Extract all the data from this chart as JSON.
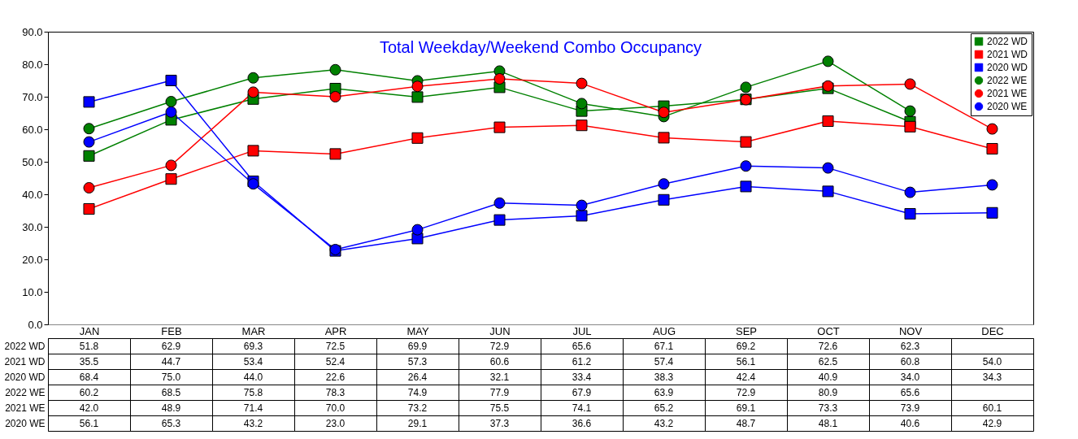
{
  "chart_data": {
    "type": "line",
    "title": "Total Weekday/Weekend Combo Occupancy",
    "categories": [
      "JAN",
      "FEB",
      "MAR",
      "APR",
      "MAY",
      "JUN",
      "JUL",
      "AUG",
      "SEP",
      "OCT",
      "NOV",
      "DEC"
    ],
    "series": [
      {
        "name": "2022 WD",
        "color": "#008000",
        "marker": "square",
        "values": [
          51.8,
          62.9,
          69.3,
          72.5,
          69.9,
          72.9,
          65.6,
          67.1,
          69.2,
          72.6,
          62.3,
          null
        ],
        "value_labels": [
          "51.8",
          "62.9",
          "69.3",
          "72.5",
          "69.9",
          "72.9",
          "65.6",
          "67.1",
          "69.2",
          "72.6",
          "62.3",
          null
        ]
      },
      {
        "name": "2021 WD",
        "color": "#ff0000",
        "marker": "square",
        "values": [
          35.5,
          44.7,
          53.4,
          52.4,
          57.3,
          60.6,
          61.2,
          57.4,
          56.1,
          62.5,
          60.8,
          54.0
        ],
        "value_labels": [
          "35.5",
          "44.7",
          "53.4",
          "52.4",
          "57.3",
          "60.6",
          "61.2",
          "57.4",
          "56.1",
          "62.5",
          "60.8",
          "54.0"
        ]
      },
      {
        "name": "2020 WD",
        "color": "#0000ff",
        "marker": "square",
        "values": [
          68.4,
          75.0,
          44.0,
          22.6,
          26.4,
          32.1,
          33.4,
          38.3,
          42.4,
          40.9,
          34.0,
          34.3
        ],
        "value_labels": [
          "68.4",
          "75.0",
          "44.0",
          "22.6",
          "26.4",
          "32.1",
          "33.4",
          "38.3",
          "42.4",
          "40.9",
          "34.0",
          "34.3"
        ]
      },
      {
        "name": "2022 WE",
        "color": "#008000",
        "marker": "circle",
        "values": [
          60.2,
          68.5,
          75.8,
          78.3,
          74.9,
          77.9,
          67.9,
          63.9,
          72.9,
          80.9,
          65.6,
          null
        ],
        "value_labels": [
          "60.2",
          "68.5",
          "75.8",
          "78.3",
          "74.9",
          "77.9",
          "67.9",
          "63.9",
          "72.9",
          "80.9",
          "65.6",
          null
        ]
      },
      {
        "name": "2021 WE",
        "color": "#ff0000",
        "marker": "circle",
        "values": [
          42.0,
          48.9,
          71.4,
          70.0,
          73.2,
          75.5,
          74.1,
          65.2,
          69.1,
          73.3,
          73.9,
          60.1
        ],
        "value_labels": [
          "42.0",
          "48.9",
          "71.4",
          "70.0",
          "73.2",
          "75.5",
          "74.1",
          "65.2",
          "69.1",
          "73.3",
          "73.9",
          "60.1"
        ]
      },
      {
        "name": "2020 WE",
        "color": "#0000ff",
        "marker": "circle",
        "values": [
          56.1,
          65.3,
          43.2,
          23.0,
          29.1,
          37.3,
          36.6,
          43.2,
          48.7,
          48.1,
          40.6,
          42.9
        ],
        "value_labels": [
          "56.1",
          "65.3",
          "43.2",
          "23.0",
          "29.1",
          "37.3",
          "36.6",
          "43.2",
          "48.7",
          "48.1",
          "40.6",
          "42.9"
        ]
      }
    ],
    "ylim": [
      0,
      90
    ],
    "yticks": [
      {
        "value": 0,
        "label": "0.0"
      },
      {
        "value": 10,
        "label": "10.0"
      },
      {
        "value": 20,
        "label": "20.0"
      },
      {
        "value": 30,
        "label": "30.0"
      },
      {
        "value": 40,
        "label": "40.0"
      },
      {
        "value": 50,
        "label": "50.0"
      },
      {
        "value": 60,
        "label": "60.0"
      },
      {
        "value": 70,
        "label": "70.0"
      },
      {
        "value": 80,
        "label": "80.0"
      },
      {
        "value": 90,
        "label": "90.0"
      }
    ],
    "grid": false,
    "legend": "top right"
  }
}
